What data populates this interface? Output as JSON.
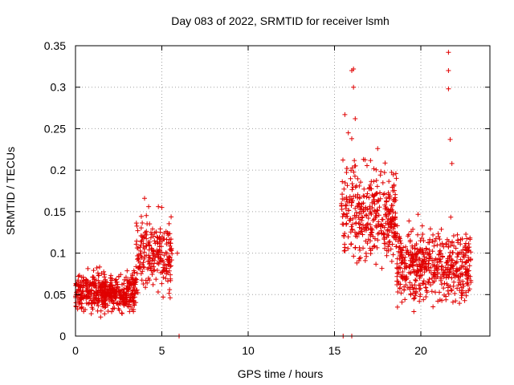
{
  "chart_data": {
    "type": "scatter",
    "title": "Day 083 of 2022, SRMTID for receiver lsmh",
    "xlabel": "GPS time / hours",
    "ylabel": "SRMTID / TECUs",
    "xlim": [
      0,
      24
    ],
    "ylim": [
      0,
      0.35
    ],
    "grid": true,
    "marker": "+",
    "color": "#e00000",
    "x_ticks": [
      0,
      5,
      10,
      15,
      20
    ],
    "x_tick_labels": [
      "0",
      "5",
      "10",
      "15",
      "20"
    ],
    "y_ticks": [
      0,
      0.05,
      0.1,
      0.15,
      0.2,
      0.25,
      0.3,
      0.35
    ],
    "y_tick_labels": [
      "0",
      "0.05",
      "0.1",
      "0.15",
      "0.2",
      "0.25",
      "0.3",
      "0.35"
    ],
    "series": [
      {
        "name": "SRMTID",
        "segments": [
          {
            "x_range": [
              0.0,
              3.5
            ],
            "mean": 0.052,
            "spread": 0.018,
            "n": 480
          },
          {
            "x_range": [
              3.5,
              5.6
            ],
            "mean": 0.1,
            "spread": 0.035,
            "n": 230
          },
          {
            "x_range": [
              15.4,
              18.6
            ],
            "mean": 0.145,
            "spread": 0.045,
            "n": 380
          },
          {
            "x_range": [
              18.6,
              22.9
            ],
            "mean": 0.085,
            "spread": 0.035,
            "n": 520
          }
        ],
        "points": [
          [
            5.9,
            0.1
          ],
          [
            6.0,
            0.0
          ],
          [
            15.5,
            0.0
          ],
          [
            16.0,
            0.0
          ],
          [
            15.6,
            0.267
          ],
          [
            15.8,
            0.245
          ],
          [
            16.0,
            0.32
          ],
          [
            16.1,
            0.3
          ],
          [
            16.1,
            0.322
          ],
          [
            16.0,
            0.238
          ],
          [
            16.2,
            0.262
          ],
          [
            17.5,
            0.226
          ],
          [
            21.6,
            0.342
          ],
          [
            21.6,
            0.32
          ],
          [
            21.6,
            0.298
          ],
          [
            21.7,
            0.237
          ],
          [
            21.8,
            0.208
          ],
          [
            4.0,
            0.166
          ],
          [
            4.8,
            0.156
          ],
          [
            5.0,
            0.155
          ]
        ]
      }
    ]
  }
}
